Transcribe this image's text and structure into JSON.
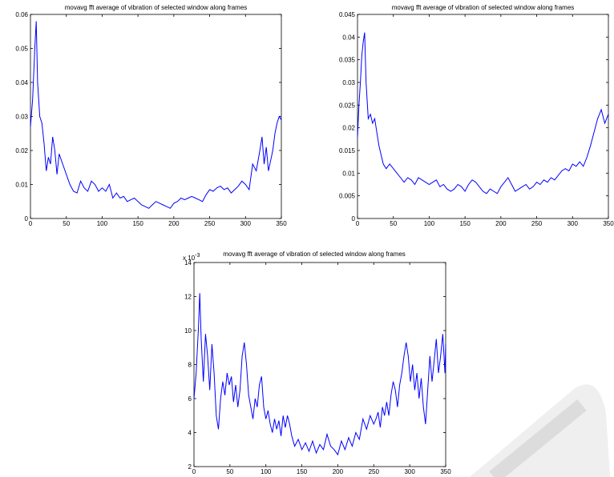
{
  "chart_data": [
    {
      "type": "line",
      "title": "movavg fft average of vibration of selected window along frames",
      "xlim": [
        0,
        350
      ],
      "ylim": [
        0,
        0.06
      ],
      "xticks": [
        "0",
        "50",
        "100",
        "150",
        "200",
        "250",
        "300",
        "350"
      ],
      "yticks": [
        "0",
        "0.01",
        "0.02",
        "0.03",
        "0.04",
        "0.05",
        "0.06"
      ],
      "grid": false,
      "series": [
        {
          "color": "#0000ff",
          "x": [
            0,
            3,
            6,
            8,
            10,
            13,
            16,
            19,
            22,
            25,
            28,
            31,
            34,
            37,
            40,
            45,
            50,
            55,
            60,
            65,
            70,
            75,
            80,
            85,
            90,
            95,
            100,
            105,
            110,
            115,
            120,
            125,
            130,
            135,
            140,
            145,
            150,
            155,
            160,
            165,
            170,
            175,
            180,
            185,
            190,
            195,
            200,
            205,
            210,
            215,
            220,
            225,
            230,
            235,
            240,
            245,
            250,
            255,
            260,
            265,
            270,
            275,
            280,
            285,
            290,
            295,
            300,
            305,
            310,
            315,
            320,
            323,
            326,
            329,
            332,
            335,
            338,
            341,
            344,
            347,
            350
          ],
          "y": [
            0.027,
            0.035,
            0.05,
            0.058,
            0.04,
            0.03,
            0.028,
            0.022,
            0.014,
            0.018,
            0.016,
            0.024,
            0.02,
            0.013,
            0.019,
            0.016,
            0.013,
            0.01,
            0.008,
            0.0075,
            0.011,
            0.009,
            0.008,
            0.011,
            0.01,
            0.008,
            0.009,
            0.008,
            0.01,
            0.006,
            0.0075,
            0.006,
            0.0065,
            0.005,
            0.0055,
            0.006,
            0.005,
            0.004,
            0.0035,
            0.003,
            0.004,
            0.005,
            0.0045,
            0.004,
            0.0035,
            0.003,
            0.0045,
            0.005,
            0.006,
            0.0055,
            0.006,
            0.0065,
            0.006,
            0.0055,
            0.005,
            0.007,
            0.0085,
            0.008,
            0.009,
            0.0095,
            0.0085,
            0.009,
            0.0075,
            0.0085,
            0.0095,
            0.011,
            0.01,
            0.0085,
            0.016,
            0.014,
            0.02,
            0.024,
            0.016,
            0.021,
            0.014,
            0.017,
            0.02,
            0.025,
            0.028,
            0.03,
            0.029
          ]
        }
      ]
    },
    {
      "type": "line",
      "title": "movavg fft average of vibration of selected window along frames",
      "xlim": [
        0,
        350
      ],
      "ylim": [
        0,
        0.045
      ],
      "xticks": [
        "0",
        "50",
        "100",
        "150",
        "200",
        "250",
        "300",
        "350"
      ],
      "yticks": [
        "0",
        "0.005",
        "0.01",
        "0.015",
        "0.02",
        "0.025",
        "0.03",
        "0.035",
        "0.04",
        "0.045"
      ],
      "grid": false,
      "series": [
        {
          "color": "#0000ff",
          "x": [
            0,
            2,
            4,
            6,
            8,
            10,
            12,
            15,
            18,
            21,
            24,
            27,
            30,
            33,
            36,
            40,
            45,
            50,
            55,
            60,
            65,
            70,
            75,
            80,
            85,
            90,
            95,
            100,
            105,
            110,
            115,
            120,
            125,
            130,
            135,
            140,
            145,
            150,
            155,
            160,
            165,
            170,
            175,
            180,
            185,
            190,
            195,
            200,
            205,
            210,
            215,
            220,
            225,
            230,
            235,
            240,
            245,
            250,
            255,
            260,
            265,
            270,
            275,
            280,
            285,
            290,
            295,
            300,
            305,
            310,
            315,
            320,
            325,
            330,
            335,
            340,
            345,
            350
          ],
          "y": [
            0.018,
            0.025,
            0.03,
            0.036,
            0.039,
            0.041,
            0.03,
            0.022,
            0.023,
            0.021,
            0.022,
            0.019,
            0.016,
            0.014,
            0.012,
            0.011,
            0.012,
            0.011,
            0.01,
            0.009,
            0.008,
            0.009,
            0.0085,
            0.0075,
            0.009,
            0.0085,
            0.008,
            0.0075,
            0.008,
            0.0085,
            0.007,
            0.0075,
            0.0065,
            0.006,
            0.0065,
            0.0075,
            0.007,
            0.006,
            0.0075,
            0.0085,
            0.008,
            0.007,
            0.006,
            0.0055,
            0.0065,
            0.006,
            0.0055,
            0.007,
            0.008,
            0.009,
            0.0075,
            0.006,
            0.0065,
            0.007,
            0.0075,
            0.0065,
            0.007,
            0.008,
            0.0075,
            0.0085,
            0.008,
            0.009,
            0.0085,
            0.0095,
            0.0105,
            0.011,
            0.0105,
            0.012,
            0.0115,
            0.0125,
            0.0115,
            0.0135,
            0.016,
            0.019,
            0.022,
            0.024,
            0.021,
            0.023
          ]
        }
      ]
    },
    {
      "type": "line",
      "title": "movavg fft average of vibration of selected window along frames",
      "y_exponent": "x 10",
      "y_exponent_power": "-3",
      "xlim": [
        0,
        350
      ],
      "ylim": [
        2,
        14
      ],
      "xticks": [
        "0",
        "50",
        "100",
        "150",
        "200",
        "250",
        "300",
        "350"
      ],
      "yticks": [
        "2",
        "4",
        "6",
        "8",
        "10",
        "12",
        "14"
      ],
      "grid": false,
      "series": [
        {
          "color": "#0000ff",
          "x": [
            0,
            3,
            6,
            8,
            10,
            13,
            16,
            19,
            22,
            25,
            28,
            31,
            34,
            37,
            40,
            43,
            46,
            49,
            52,
            55,
            58,
            61,
            64,
            67,
            70,
            73,
            76,
            79,
            82,
            85,
            88,
            91,
            94,
            97,
            100,
            103,
            106,
            109,
            112,
            115,
            118,
            121,
            124,
            127,
            130,
            133,
            136,
            140,
            145,
            150,
            155,
            160,
            165,
            170,
            175,
            180,
            185,
            190,
            195,
            200,
            205,
            210,
            215,
            220,
            225,
            230,
            235,
            240,
            245,
            250,
            253,
            256,
            259,
            262,
            265,
            268,
            271,
            274,
            277,
            280,
            283,
            286,
            289,
            292,
            295,
            298,
            301,
            304,
            307,
            310,
            313,
            316,
            319,
            322,
            325,
            328,
            331,
            334,
            337,
            340,
            343,
            346,
            349,
            350
          ],
          "y": [
            6.0,
            7.5,
            10.0,
            12.2,
            9.5,
            7.0,
            9.8,
            8.5,
            6.5,
            9.2,
            7.5,
            5.0,
            4.2,
            6.0,
            7.0,
            6.2,
            7.5,
            6.8,
            7.3,
            5.8,
            6.8,
            5.5,
            6.5,
            8.5,
            9.3,
            8.0,
            6.2,
            5.5,
            4.8,
            6.0,
            5.5,
            6.8,
            7.3,
            5.5,
            4.8,
            5.3,
            4.5,
            4.0,
            4.8,
            4.2,
            4.7,
            3.8,
            5.0,
            4.3,
            5.0,
            4.5,
            3.8,
            3.2,
            3.6,
            3.0,
            3.4,
            2.9,
            3.5,
            2.8,
            3.3,
            3.0,
            3.9,
            3.2,
            3.0,
            2.7,
            3.5,
            3.0,
            3.7,
            3.2,
            4.0,
            3.6,
            4.8,
            4.2,
            5.0,
            4.5,
            4.8,
            5.2,
            4.3,
            5.5,
            5.0,
            5.8,
            5.0,
            6.2,
            7.0,
            6.5,
            5.5,
            6.8,
            7.5,
            8.5,
            9.3,
            8.5,
            7.0,
            8.0,
            6.5,
            7.5,
            6.0,
            7.2,
            5.5,
            4.5,
            6.5,
            8.5,
            7.0,
            8.2,
            9.5,
            7.5,
            8.5,
            9.8,
            7.5,
            9.2
          ]
        }
      ]
    }
  ]
}
